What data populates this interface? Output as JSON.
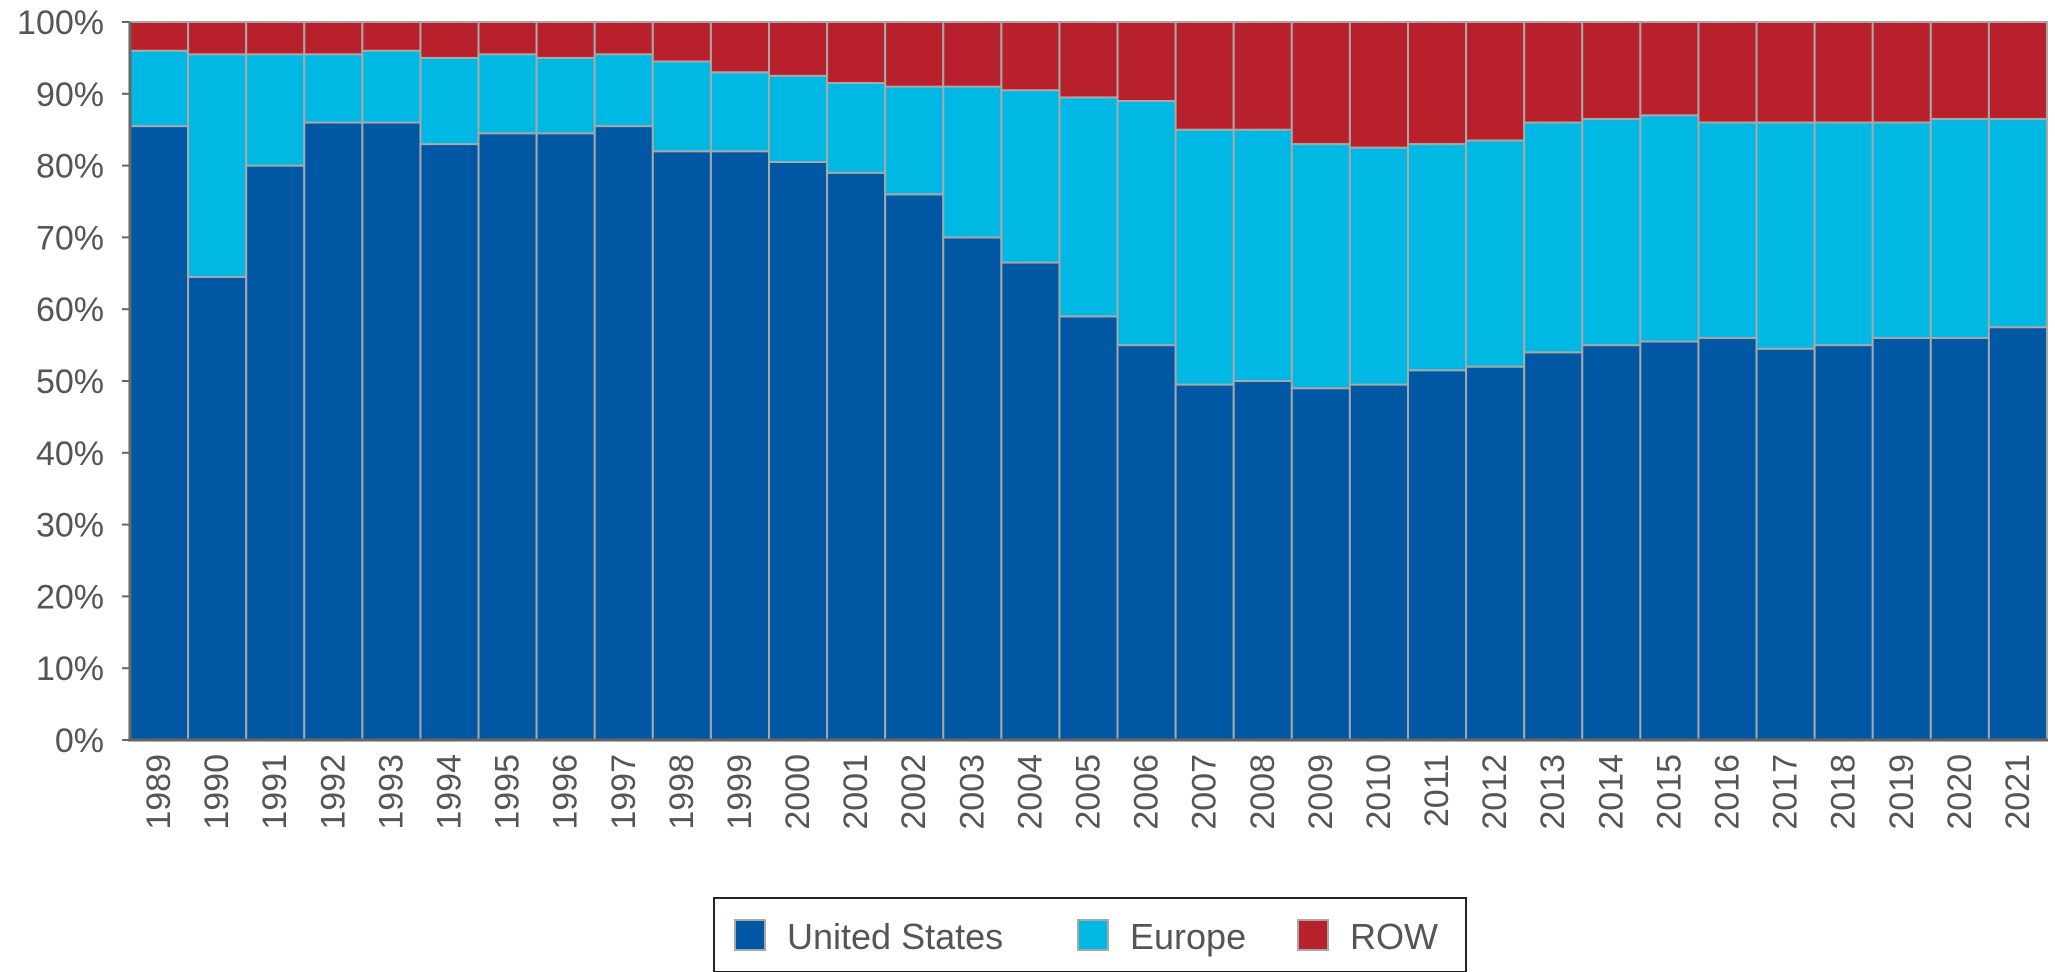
{
  "chart_data": {
    "type": "bar",
    "stacked": true,
    "title": "",
    "xlabel": "",
    "ylabel": "",
    "ylim": [
      0,
      100
    ],
    "y_tick_labels": [
      "0%",
      "10%",
      "20%",
      "30%",
      "40%",
      "50%",
      "60%",
      "70%",
      "80%",
      "90%",
      "100%"
    ],
    "grid": false,
    "legend_position": "bottom-center",
    "categories": [
      "1989",
      "1990",
      "1991",
      "1992",
      "1993",
      "1994",
      "1995",
      "1996",
      "1997",
      "1998",
      "1999",
      "2000",
      "2001",
      "2002",
      "2003",
      "2004",
      "2005",
      "2006",
      "2007",
      "2008",
      "2009",
      "2010",
      "2011",
      "2012",
      "2013",
      "2014",
      "2015",
      "2016",
      "2017",
      "2018",
      "2019",
      "2020",
      "2021"
    ],
    "series": [
      {
        "name": "United States",
        "color": "#0057a3",
        "values": [
          85.5,
          64.5,
          80,
          86,
          86,
          83,
          84.5,
          84.5,
          85.5,
          82,
          82,
          80.5,
          79,
          76,
          70,
          66.5,
          59,
          55,
          49.5,
          50,
          49,
          49.5,
          51.5,
          52,
          54,
          55,
          55.5,
          56,
          54.5,
          55,
          56,
          56,
          57.5
        ]
      },
      {
        "name": "Europe",
        "color": "#00b8e4",
        "values": [
          10.5,
          31,
          15.5,
          9.5,
          10,
          12,
          11,
          10.5,
          10,
          12.5,
          11,
          12,
          12.5,
          15,
          21,
          24,
          30.5,
          34,
          35.5,
          35,
          34,
          33,
          31.5,
          31.5,
          32,
          31.5,
          31.5,
          30,
          31.5,
          31,
          30,
          30.5,
          29
        ]
      },
      {
        "name": "ROW",
        "color": "#b8202b",
        "values": [
          4,
          4.5,
          4.5,
          4.5,
          4,
          5,
          4.5,
          5,
          4.5,
          5.5,
          7,
          7.5,
          8.5,
          9,
          9,
          9.5,
          10.5,
          11,
          15,
          15,
          17,
          17.5,
          17,
          16.5,
          14,
          13.5,
          13,
          14,
          14,
          14,
          14,
          13.5,
          13.5
        ]
      }
    ]
  }
}
